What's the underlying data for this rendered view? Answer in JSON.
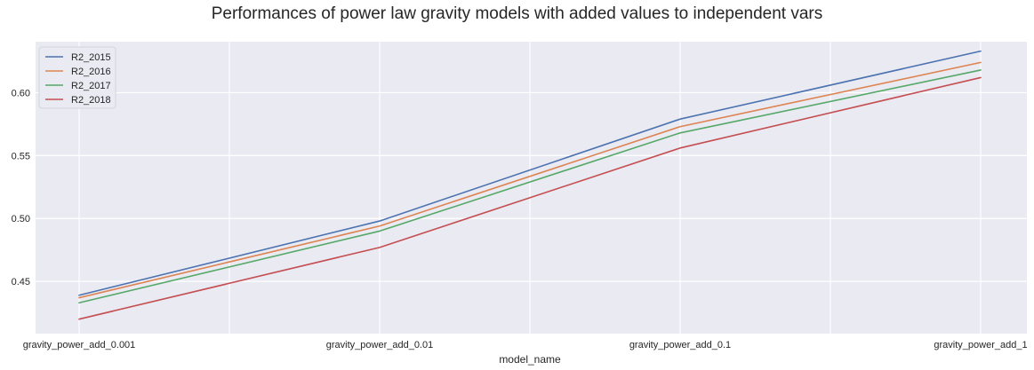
{
  "chart_data": {
    "type": "line",
    "title": "Performances of power law gravity models with added values to independent vars",
    "xlabel": "model_name",
    "ylabel": "",
    "categories": [
      "gravity_power_add_0.001",
      "gravity_power_add_0.01",
      "gravity_power_add_0.1",
      "gravity_power_add_1"
    ],
    "ylim": [
      0.4085,
      0.6405
    ],
    "yticks": [
      "0.45",
      "0.50",
      "0.55",
      "0.60"
    ],
    "yticks_values": [
      0.45,
      0.5,
      0.55,
      0.6
    ],
    "grid": true,
    "legend_position": "top-left",
    "series": [
      {
        "name": "R2_2015",
        "color": "#4c72b0",
        "values": [
          0.439,
          0.498,
          0.579,
          0.633
        ]
      },
      {
        "name": "R2_2016",
        "color": "#dd8452",
        "values": [
          0.437,
          0.494,
          0.573,
          0.624
        ]
      },
      {
        "name": "R2_2017",
        "color": "#55a868",
        "values": [
          0.433,
          0.49,
          0.568,
          0.618
        ]
      },
      {
        "name": "R2_2018",
        "color": "#c44e52",
        "values": [
          0.42,
          0.477,
          0.556,
          0.612
        ]
      }
    ]
  }
}
